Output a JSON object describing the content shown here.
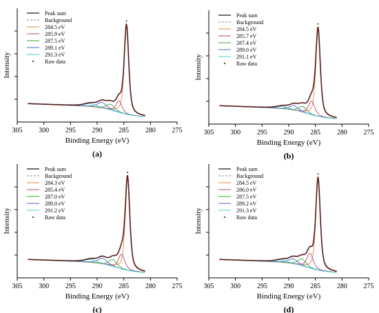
{
  "chart_data": [
    {
      "type": "line",
      "panel_label": "(a)",
      "xlabel": "Binding Energy (eV)",
      "ylabel": "Intensity",
      "xlim": [
        305,
        275
      ],
      "x_ticks": [
        305,
        300,
        295,
        290,
        285,
        280,
        275
      ],
      "x_tick_labels": [
        "305",
        "300",
        "295",
        "290",
        "285",
        "280",
        "275"
      ],
      "ylim": [
        0,
        1
      ],
      "y_ticks": [
        0.2,
        0.4,
        0.6,
        0.8
      ],
      "grid": false,
      "legend_position": "top-left",
      "legend": [
        "Peak sum",
        "Background",
        "284.5 eV",
        "285.9 eV",
        "287.5 eV",
        "289.1 eV",
        "291.3 eV",
        "Raw data"
      ],
      "data_range": [
        303,
        281
      ],
      "background": {
        "low_end": 0.2,
        "high_end": 0.045
      },
      "peaks": [
        {
          "name": "284.5 eV",
          "center": 284.5,
          "height": 0.78,
          "fwhm": 1.0,
          "color": "#e8853a"
        },
        {
          "name": "285.9 eV",
          "center": 285.9,
          "height": 0.1,
          "fwhm": 1.3,
          "color": "#c0407f"
        },
        {
          "name": "287.5 eV",
          "center": 287.5,
          "height": 0.05,
          "fwhm": 1.8,
          "color": "#3aa83a"
        },
        {
          "name": "289.1 eV",
          "center": 289.1,
          "height": 0.05,
          "fwhm": 2.0,
          "color": "#4a68c8"
        },
        {
          "name": "291.3 eV",
          "center": 291.3,
          "height": 0.025,
          "fwhm": 2.6,
          "color": "#40d0d8"
        }
      ]
    },
    {
      "type": "line",
      "panel_label": "(b)",
      "xlabel": "Binding Energy (eV)",
      "ylabel": "Intensity",
      "xlim": [
        305,
        275
      ],
      "x_ticks": [
        305,
        300,
        295,
        290,
        285,
        280,
        275
      ],
      "x_tick_labels": [
        "305",
        "300",
        "295",
        "290",
        "285",
        "280",
        "275"
      ],
      "ylim": [
        0,
        1
      ],
      "y_ticks": [
        0.2,
        0.4,
        0.6,
        0.8
      ],
      "grid": false,
      "legend_position": "top-left",
      "legend": [
        "Peak sum",
        "Background",
        "284.5 eV",
        "285.7 eV",
        "287.4 eV",
        "289.0 eV",
        "291.1 eV",
        "Raw data"
      ],
      "data_range": [
        303,
        281
      ],
      "background": {
        "low_end": 0.2,
        "high_end": 0.045
      },
      "peaks": [
        {
          "name": "284.5 eV",
          "center": 284.5,
          "height": 0.76,
          "fwhm": 1.0,
          "color": "#e8853a"
        },
        {
          "name": "285.7 eV",
          "center": 285.7,
          "height": 0.12,
          "fwhm": 1.4,
          "color": "#c0407f"
        },
        {
          "name": "287.4 eV",
          "center": 287.4,
          "height": 0.05,
          "fwhm": 1.8,
          "color": "#3aa83a"
        },
        {
          "name": "289.0 eV",
          "center": 289.0,
          "height": 0.04,
          "fwhm": 2.0,
          "color": "#4a68c8"
        },
        {
          "name": "291.1 eV",
          "center": 291.1,
          "height": 0.02,
          "fwhm": 2.6,
          "color": "#40d0d8"
        }
      ]
    },
    {
      "type": "line",
      "panel_label": "(c)",
      "xlabel": "Binding Energy (eV)",
      "ylabel": "Intensity",
      "xlim": [
        305,
        275
      ],
      "x_ticks": [
        305,
        300,
        295,
        290,
        285,
        280,
        275
      ],
      "x_tick_labels": [
        "305",
        "300",
        "295",
        "290",
        "285",
        "280",
        "275"
      ],
      "ylim": [
        0,
        1
      ],
      "y_ticks": [
        0.2,
        0.4,
        0.6,
        0.8
      ],
      "grid": false,
      "legend_position": "top-left",
      "legend": [
        "Peak sum",
        "Background",
        "284.3 eV",
        "285.4 eV",
        "287.0 eV",
        "289.0 eV",
        "291.2 eV",
        "Raw data"
      ],
      "data_range": [
        303,
        281
      ],
      "background": {
        "low_end": 0.2,
        "high_end": 0.045
      },
      "peaks": [
        {
          "name": "284.3 eV",
          "center": 284.3,
          "height": 0.8,
          "fwhm": 1.0,
          "color": "#e8853a"
        },
        {
          "name": "285.4 eV",
          "center": 285.4,
          "height": 0.13,
          "fwhm": 1.4,
          "color": "#c0407f"
        },
        {
          "name": "287.0 eV",
          "center": 287.0,
          "height": 0.06,
          "fwhm": 1.8,
          "color": "#3aa83a"
        },
        {
          "name": "289.0 eV",
          "center": 289.0,
          "height": 0.05,
          "fwhm": 2.0,
          "color": "#4a68c8"
        },
        {
          "name": "291.2 eV",
          "center": 291.2,
          "height": 0.025,
          "fwhm": 2.6,
          "color": "#40d0d8"
        }
      ]
    },
    {
      "type": "line",
      "panel_label": "(d)",
      "xlabel": "Binding Energy (eV)",
      "ylabel": "Intensity",
      "xlim": [
        305,
        275
      ],
      "x_ticks": [
        305,
        300,
        295,
        290,
        285,
        280,
        275
      ],
      "x_tick_labels": [
        "305",
        "300",
        "295",
        "290",
        "285",
        "280",
        "275"
      ],
      "ylim": [
        0,
        1
      ],
      "y_ticks": [
        0.2,
        0.4,
        0.6,
        0.8
      ],
      "grid": false,
      "legend_position": "top-left",
      "legend": [
        "Peak sum",
        "Background",
        "284.5 eV",
        "286.0 eV",
        "287.5 eV",
        "289.2 eV",
        "291.3 eV",
        "Raw data"
      ],
      "data_range": [
        303,
        281
      ],
      "background": {
        "low_end": 0.2,
        "high_end": 0.045
      },
      "peaks": [
        {
          "name": "284.5 eV",
          "center": 284.5,
          "height": 0.8,
          "fwhm": 1.0,
          "color": "#e8853a"
        },
        {
          "name": "286.0 eV",
          "center": 286.0,
          "height": 0.13,
          "fwhm": 1.4,
          "color": "#c0407f"
        },
        {
          "name": "287.5 eV",
          "center": 287.5,
          "height": 0.06,
          "fwhm": 1.8,
          "color": "#3aa83a"
        },
        {
          "name": "289.2 eV",
          "center": 289.2,
          "height": 0.045,
          "fwhm": 2.0,
          "color": "#4a68c8"
        },
        {
          "name": "291.3 eV",
          "center": 291.3,
          "height": 0.02,
          "fwhm": 2.6,
          "color": "#40d0d8"
        }
      ]
    }
  ],
  "colors": {
    "peak_sum": "#1a1a1a",
    "background": "#666666",
    "raw_data": "#8b1a1a",
    "axis": "#000000"
  }
}
